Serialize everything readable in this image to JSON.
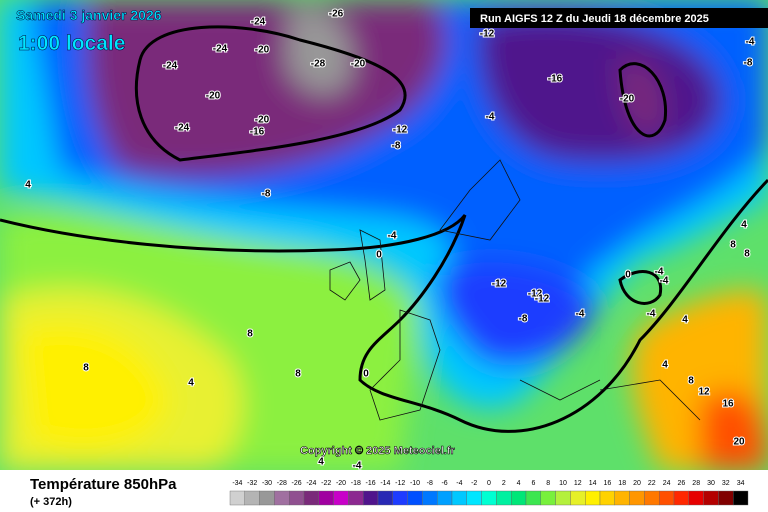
{
  "header": {
    "date": "Samedi 3 janvier 2026",
    "time": "1:00 locale",
    "run": "Run AIGFS 12 Z du Jeudi 18 décembre 2025"
  },
  "footer": {
    "title": "Température 850hPa",
    "lead": "(+ 372h)",
    "copyright": "Copyright © 2025 Meteociel.fr"
  },
  "scale": {
    "labels": [
      -34,
      -32,
      -30,
      -28,
      -26,
      -24,
      -22,
      -20,
      -18,
      -16,
      -14,
      -12,
      -10,
      -8,
      -6,
      -4,
      -2,
      0,
      2,
      4,
      6,
      8,
      10,
      12,
      14,
      16,
      18,
      20,
      22,
      24,
      26,
      28,
      30,
      32,
      34
    ],
    "colors": [
      "#d0d0d0",
      "#b4b4b4",
      "#989898",
      "#a070a0",
      "#905090",
      "#7a2a7a",
      "#a000a0",
      "#c800c8",
      "#8c2890",
      "#50148c",
      "#2828b4",
      "#1e3cff",
      "#0050ff",
      "#0078ff",
      "#00a0ff",
      "#00c8ff",
      "#00e6ff",
      "#00ffd2",
      "#00f0a0",
      "#00e678",
      "#3ce650",
      "#78f03c",
      "#b4f03c",
      "#e6f028",
      "#fff000",
      "#ffd200",
      "#ffb400",
      "#ff9600",
      "#ff7800",
      "#ff5000",
      "#ff2800",
      "#e60000",
      "#b40000",
      "#800000",
      "#000000"
    ]
  },
  "contour_labels": [
    -24,
    -26,
    -24,
    -20,
    -28,
    -20,
    -24,
    -20,
    -24,
    -20,
    -16,
    -12,
    -8,
    -8,
    -4,
    0,
    -12,
    -16,
    -20,
    -4,
    -4,
    -8,
    4,
    8,
    8,
    4,
    8,
    0,
    -12,
    -12,
    -12,
    -8,
    -4,
    0,
    -4,
    -4,
    -4,
    4,
    4,
    8,
    12,
    16,
    20,
    4,
    -4,
    8,
    8,
    4
  ]
}
